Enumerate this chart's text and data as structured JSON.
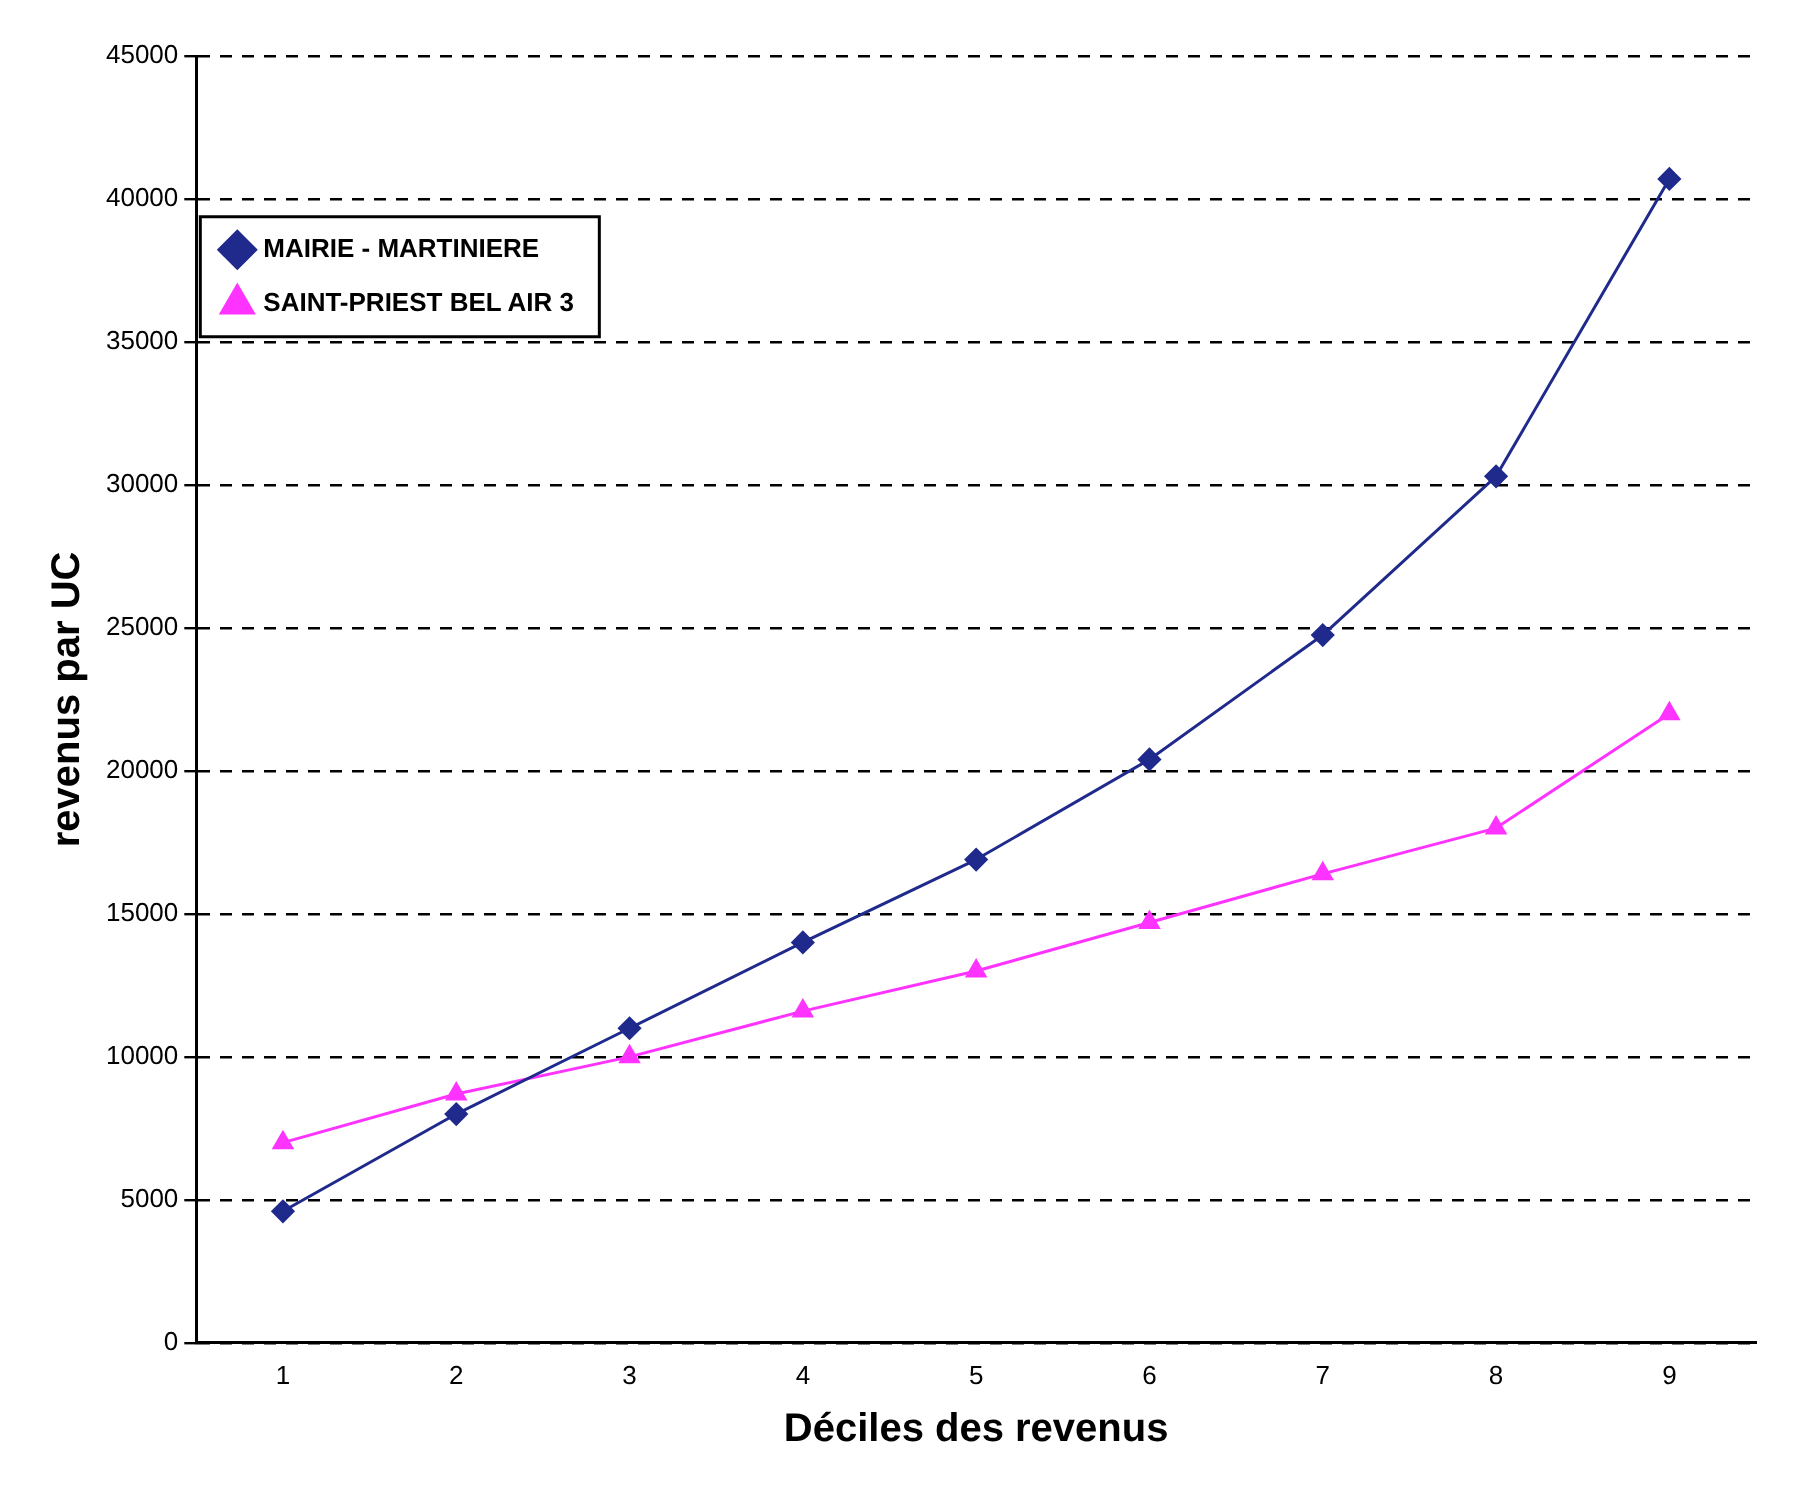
{
  "chart_data": {
    "type": "line",
    "xlabel": "Déciles des revenus",
    "ylabel": "revenus par UC",
    "categories": [
      "1",
      "2",
      "3",
      "4",
      "5",
      "6",
      "7",
      "8",
      "9"
    ],
    "series": [
      {
        "name": "MAIRIE - MARTINIERE",
        "color": "#1f2a8c",
        "marker": "diamond",
        "values": [
          4600,
          8000,
          11000,
          14000,
          16900,
          20400,
          24750,
          30300,
          40700
        ]
      },
      {
        "name": "SAINT-PRIEST BEL AIR 3",
        "color": "#ff33ff",
        "marker": "triangle",
        "values": [
          7000,
          8700,
          10000,
          11600,
          13000,
          14700,
          16400,
          18000,
          22000
        ]
      }
    ],
    "ylim": [
      0,
      45000
    ],
    "yticks": [
      0,
      5000,
      10000,
      15000,
      20000,
      25000,
      30000,
      35000,
      40000,
      45000
    ],
    "grid": "y",
    "legend": "top left",
    "line_style": "solid"
  }
}
